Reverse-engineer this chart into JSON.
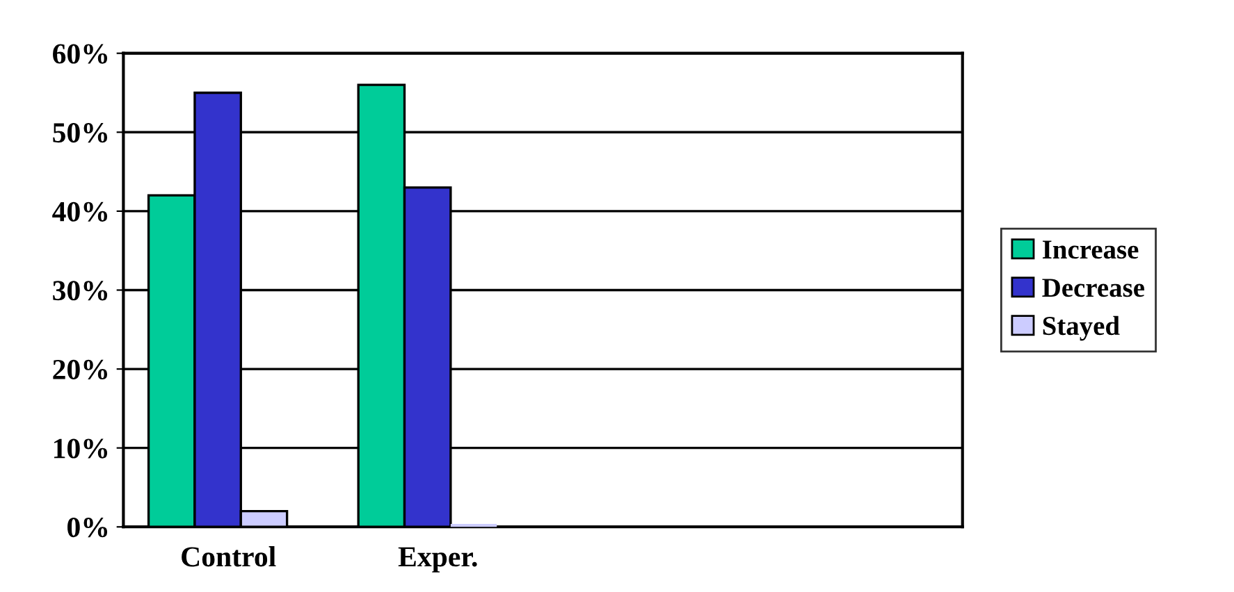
{
  "chart_data": {
    "type": "bar",
    "categories": [
      "Control",
      "Exper.",
      null,
      null
    ],
    "series": [
      {
        "name": "Increase",
        "color": "#00cc99",
        "values": [
          42,
          56,
          null,
          null
        ]
      },
      {
        "name": "Decrease",
        "color": "#3333cc",
        "values": [
          55,
          43,
          null,
          null
        ]
      },
      {
        "name": "Stayed",
        "color": "#ccccff",
        "values": [
          2,
          0,
          null,
          null
        ]
      }
    ],
    "ylim": [
      0,
      60
    ],
    "yticks": [
      {
        "value": 0,
        "label": "0%"
      },
      {
        "value": 10,
        "label": "10%"
      },
      {
        "value": 20,
        "label": "20%"
      },
      {
        "value": 30,
        "label": "30%"
      },
      {
        "value": 40,
        "label": "40%"
      },
      {
        "value": 50,
        "label": "50%"
      },
      {
        "value": 60,
        "label": "60%"
      }
    ],
    "grid": "y",
    "legend": "right"
  }
}
